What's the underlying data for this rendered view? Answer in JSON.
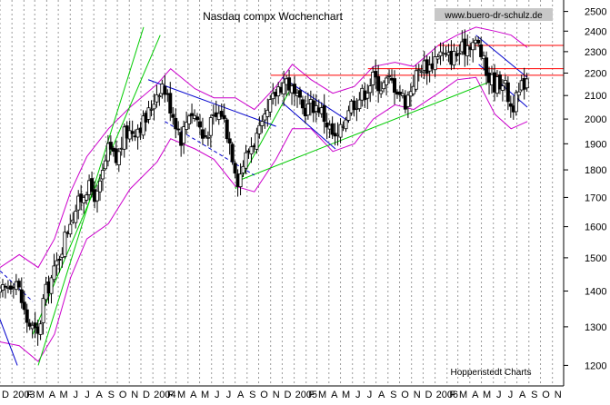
{
  "chart_data": {
    "type": "candlestick",
    "title": "Nasdaq compx Wochenchart",
    "watermark": "www.buero-dr-schulz.de",
    "source": "Hoppenstedt Charts",
    "yscale": "log",
    "ylim": [
      1150,
      2560
    ],
    "y_ticks": [
      1200,
      1300,
      1400,
      1500,
      1600,
      1700,
      1800,
      1900,
      2000,
      2100,
      2200,
      2300,
      2400,
      2500
    ],
    "x_range": [
      "2002-12-01",
      "2006-11-30"
    ],
    "x_ticks": [
      {
        "label": "D",
        "date": "2002-12-01"
      },
      {
        "label": "2003",
        "date": "2003-01-01"
      },
      {
        "label": "F",
        "date": "2003-02-01"
      },
      {
        "label": "M",
        "date": "2003-03-01"
      },
      {
        "label": "A",
        "date": "2003-04-01"
      },
      {
        "label": "M",
        "date": "2003-05-01"
      },
      {
        "label": "J",
        "date": "2003-06-01"
      },
      {
        "label": "J",
        "date": "2003-07-01"
      },
      {
        "label": "A",
        "date": "2003-08-01"
      },
      {
        "label": "S",
        "date": "2003-09-01"
      },
      {
        "label": "O",
        "date": "2003-10-01"
      },
      {
        "label": "N",
        "date": "2003-11-01"
      },
      {
        "label": "D",
        "date": "2003-12-01"
      },
      {
        "label": "2004",
        "date": "2004-01-01"
      },
      {
        "label": "F",
        "date": "2004-02-01"
      },
      {
        "label": "M",
        "date": "2004-03-01"
      },
      {
        "label": "A",
        "date": "2004-04-01"
      },
      {
        "label": "M",
        "date": "2004-05-01"
      },
      {
        "label": "J",
        "date": "2004-06-01"
      },
      {
        "label": "J",
        "date": "2004-07-01"
      },
      {
        "label": "A",
        "date": "2004-08-01"
      },
      {
        "label": "S",
        "date": "2004-09-01"
      },
      {
        "label": "O",
        "date": "2004-10-01"
      },
      {
        "label": "N",
        "date": "2004-11-01"
      },
      {
        "label": "D",
        "date": "2004-12-01"
      },
      {
        "label": "2005",
        "date": "2005-01-01"
      },
      {
        "label": "F",
        "date": "2005-02-01"
      },
      {
        "label": "M",
        "date": "2005-03-01"
      },
      {
        "label": "A",
        "date": "2005-04-01"
      },
      {
        "label": "M",
        "date": "2005-05-01"
      },
      {
        "label": "J",
        "date": "2005-06-01"
      },
      {
        "label": "J",
        "date": "2005-07-01"
      },
      {
        "label": "A",
        "date": "2005-08-01"
      },
      {
        "label": "S",
        "date": "2005-09-01"
      },
      {
        "label": "O",
        "date": "2005-10-01"
      },
      {
        "label": "N",
        "date": "2005-11-01"
      },
      {
        "label": "D",
        "date": "2005-12-01"
      },
      {
        "label": "2006",
        "date": "2006-01-01"
      },
      {
        "label": "F",
        "date": "2006-02-01"
      },
      {
        "label": "M",
        "date": "2006-03-01"
      },
      {
        "label": "A",
        "date": "2006-04-01"
      },
      {
        "label": "M",
        "date": "2006-05-01"
      },
      {
        "label": "J",
        "date": "2006-06-01"
      },
      {
        "label": "J",
        "date": "2006-07-01"
      },
      {
        "label": "A",
        "date": "2006-08-01"
      },
      {
        "label": "S",
        "date": "2006-09-01"
      },
      {
        "label": "O",
        "date": "2006-10-01"
      },
      {
        "label": "N",
        "date": "2006-11-01"
      }
    ],
    "grid": {
      "vertical": "dashed",
      "horizontal": false
    },
    "anchors": [
      {
        "date": "2002-12-01",
        "close": 1390
      },
      {
        "date": "2003-01-10",
        "close": 1440
      },
      {
        "date": "2003-02-07",
        "close": 1320
      },
      {
        "date": "2003-03-10",
        "close": 1272
      },
      {
        "date": "2003-03-24",
        "close": 1380
      },
      {
        "date": "2003-04-21",
        "close": 1460
      },
      {
        "date": "2003-05-12",
        "close": 1540
      },
      {
        "date": "2003-06-02",
        "close": 1630
      },
      {
        "date": "2003-06-23",
        "close": 1680
      },
      {
        "date": "2003-07-14",
        "close": 1740
      },
      {
        "date": "2003-08-11",
        "close": 1700
      },
      {
        "date": "2003-09-08",
        "close": 1880
      },
      {
        "date": "2003-09-29",
        "close": 1830
      },
      {
        "date": "2003-10-20",
        "close": 1940
      },
      {
        "date": "2003-11-17",
        "close": 1960
      },
      {
        "date": "2003-12-15",
        "close": 2000
      },
      {
        "date": "2004-01-12",
        "close": 2120
      },
      {
        "date": "2004-01-26",
        "close": 2150
      },
      {
        "date": "2004-02-16",
        "close": 2050
      },
      {
        "date": "2004-03-15",
        "close": 1920
      },
      {
        "date": "2004-04-05",
        "close": 2040
      },
      {
        "date": "2004-04-26",
        "close": 2000
      },
      {
        "date": "2004-05-10",
        "close": 1920
      },
      {
        "date": "2004-06-07",
        "close": 2000
      },
      {
        "date": "2004-06-28",
        "close": 2030
      },
      {
        "date": "2004-07-19",
        "close": 1900
      },
      {
        "date": "2004-08-09",
        "close": 1760
      },
      {
        "date": "2004-08-23",
        "close": 1830
      },
      {
        "date": "2004-09-13",
        "close": 1900
      },
      {
        "date": "2004-10-11",
        "close": 1960
      },
      {
        "date": "2004-11-01",
        "close": 2060
      },
      {
        "date": "2004-11-22",
        "close": 2140
      },
      {
        "date": "2004-12-13",
        "close": 2170
      },
      {
        "date": "2005-01-03",
        "close": 2090
      },
      {
        "date": "2005-01-24",
        "close": 2040
      },
      {
        "date": "2005-02-14",
        "close": 2060
      },
      {
        "date": "2005-03-07",
        "close": 2050
      },
      {
        "date": "2005-03-28",
        "close": 1980
      },
      {
        "date": "2005-04-18",
        "close": 1910
      },
      {
        "date": "2005-05-02",
        "close": 1950
      },
      {
        "date": "2005-05-23",
        "close": 2060
      },
      {
        "date": "2005-06-13",
        "close": 2080
      },
      {
        "date": "2005-07-04",
        "close": 2120
      },
      {
        "date": "2005-07-25",
        "close": 2180
      },
      {
        "date": "2005-08-15",
        "close": 2140
      },
      {
        "date": "2005-09-05",
        "close": 2170
      },
      {
        "date": "2005-09-26",
        "close": 2130
      },
      {
        "date": "2005-10-17",
        "close": 2070
      },
      {
        "date": "2005-11-07",
        "close": 2170
      },
      {
        "date": "2005-11-28",
        "close": 2240
      },
      {
        "date": "2005-12-19",
        "close": 2230
      },
      {
        "date": "2006-01-09",
        "close": 2300
      },
      {
        "date": "2006-01-30",
        "close": 2270
      },
      {
        "date": "2006-02-20",
        "close": 2280
      },
      {
        "date": "2006-03-13",
        "close": 2310
      },
      {
        "date": "2006-04-03",
        "close": 2350
      },
      {
        "date": "2006-04-24",
        "close": 2330
      },
      {
        "date": "2006-05-15",
        "close": 2190
      },
      {
        "date": "2006-06-05",
        "close": 2150
      },
      {
        "date": "2006-06-26",
        "close": 2170
      },
      {
        "date": "2006-07-17",
        "close": 2050
      },
      {
        "date": "2006-07-31",
        "close": 2080
      },
      {
        "date": "2006-08-14",
        "close": 2140
      },
      {
        "date": "2006-08-28",
        "close": 2190
      }
    ],
    "bands": {
      "upper": [
        {
          "date": "2002-12-01",
          "value": 1470
        },
        {
          "date": "2003-01-20",
          "value": 1510
        },
        {
          "date": "2003-03-10",
          "value": 1470
        },
        {
          "date": "2003-04-21",
          "value": 1560
        },
        {
          "date": "2003-06-02",
          "value": 1720
        },
        {
          "date": "2003-07-14",
          "value": 1850
        },
        {
          "date": "2003-09-08",
          "value": 1960
        },
        {
          "date": "2003-11-03",
          "value": 2050
        },
        {
          "date": "2004-01-12",
          "value": 2150
        },
        {
          "date": "2004-02-16",
          "value": 2220
        },
        {
          "date": "2004-04-19",
          "value": 2130
        },
        {
          "date": "2004-06-07",
          "value": 2090
        },
        {
          "date": "2004-08-02",
          "value": 2090
        },
        {
          "date": "2004-09-20",
          "value": 2040
        },
        {
          "date": "2004-11-15",
          "value": 2140
        },
        {
          "date": "2004-12-27",
          "value": 2240
        },
        {
          "date": "2005-02-14",
          "value": 2170
        },
        {
          "date": "2005-04-11",
          "value": 2110
        },
        {
          "date": "2005-06-06",
          "value": 2140
        },
        {
          "date": "2005-07-25",
          "value": 2230
        },
        {
          "date": "2005-09-19",
          "value": 2250
        },
        {
          "date": "2005-11-07",
          "value": 2230
        },
        {
          "date": "2006-01-09",
          "value": 2330
        },
        {
          "date": "2006-02-27",
          "value": 2380
        },
        {
          "date": "2006-04-17",
          "value": 2420
        },
        {
          "date": "2006-06-05",
          "value": 2400
        },
        {
          "date": "2006-07-17",
          "value": 2380
        },
        {
          "date": "2006-08-28",
          "value": 2320
        }
      ],
      "lower": [
        {
          "date": "2002-12-01",
          "value": 1260
        },
        {
          "date": "2003-01-20",
          "value": 1250
        },
        {
          "date": "2003-03-10",
          "value": 1210
        },
        {
          "date": "2003-04-21",
          "value": 1280
        },
        {
          "date": "2003-06-02",
          "value": 1440
        },
        {
          "date": "2003-07-14",
          "value": 1560
        },
        {
          "date": "2003-09-08",
          "value": 1610
        },
        {
          "date": "2003-11-03",
          "value": 1730
        },
        {
          "date": "2004-01-12",
          "value": 1830
        },
        {
          "date": "2004-02-16",
          "value": 1920
        },
        {
          "date": "2004-04-19",
          "value": 1880
        },
        {
          "date": "2004-06-07",
          "value": 1840
        },
        {
          "date": "2004-08-02",
          "value": 1740
        },
        {
          "date": "2004-09-20",
          "value": 1720
        },
        {
          "date": "2004-11-15",
          "value": 1840
        },
        {
          "date": "2004-12-27",
          "value": 1960
        },
        {
          "date": "2005-02-14",
          "value": 1960
        },
        {
          "date": "2005-04-11",
          "value": 1870
        },
        {
          "date": "2005-06-06",
          "value": 1900
        },
        {
          "date": "2005-07-25",
          "value": 2000
        },
        {
          "date": "2005-09-19",
          "value": 2060
        },
        {
          "date": "2005-11-07",
          "value": 2040
        },
        {
          "date": "2006-01-09",
          "value": 2110
        },
        {
          "date": "2006-02-27",
          "value": 2170
        },
        {
          "date": "2006-04-17",
          "value": 2180
        },
        {
          "date": "2006-06-05",
          "value": 2020
        },
        {
          "date": "2006-07-17",
          "value": 1960
        },
        {
          "date": "2006-08-28",
          "value": 1990
        }
      ]
    },
    "trendlines": [
      {
        "color": "#00cc00",
        "style": "solid",
        "from": {
          "date": "2003-03-10",
          "value": 1200
        },
        "to": {
          "date": "2003-12-08",
          "value": 2420
        }
      },
      {
        "color": "#00cc00",
        "style": "solid",
        "from": {
          "date": "2003-02-24",
          "value": 1280
        },
        "to": {
          "date": "2004-01-20",
          "value": 2380
        }
      },
      {
        "color": "#00cc00",
        "style": "solid",
        "from": {
          "date": "2004-08-02",
          "value": 1730
        },
        "to": {
          "date": "2004-12-20",
          "value": 2120
        }
      },
      {
        "color": "#00cc00",
        "style": "solid",
        "from": {
          "date": "2004-08-09",
          "value": 1760
        },
        "to": {
          "date": "2006-06-20",
          "value": 2180
        }
      },
      {
        "color": "#0000cc",
        "style": "solid",
        "from": {
          "date": "2003-12-20",
          "value": 2170
        },
        "to": {
          "date": "2004-11-15",
          "value": 1970
        }
      },
      {
        "color": "#0000cc",
        "style": "solid",
        "from": {
          "date": "2004-12-01",
          "value": 2180
        },
        "to": {
          "date": "2005-05-23",
          "value": 1990
        }
      },
      {
        "color": "#0000cc",
        "style": "solid",
        "from": {
          "date": "2004-12-01",
          "value": 2070
        },
        "to": {
          "date": "2005-04-18",
          "value": 1880
        }
      },
      {
        "color": "#0000cc",
        "style": "solid",
        "from": {
          "date": "2006-04-17",
          "value": 2380
        },
        "to": {
          "date": "2006-08-28",
          "value": 2180
        }
      },
      {
        "color": "#0000cc",
        "style": "solid",
        "from": {
          "date": "2006-04-24",
          "value": 2240
        },
        "to": {
          "date": "2006-08-28",
          "value": 2050
        }
      },
      {
        "color": "#0000cc",
        "style": "dashed",
        "from": {
          "date": "2002-12-01",
          "value": 1460
        },
        "to": {
          "date": "2003-02-24",
          "value": 1370
        }
      },
      {
        "color": "#0000cc",
        "style": "solid",
        "from": {
          "date": "2002-12-01",
          "value": 1320
        },
        "to": {
          "date": "2003-01-15",
          "value": 1200
        }
      },
      {
        "color": "#0000cc",
        "style": "dashed",
        "from": {
          "date": "2004-02-01",
          "value": 1990
        },
        "to": {
          "date": "2004-09-20",
          "value": 1780
        }
      }
    ],
    "hlines": [
      {
        "color": "#ff0000",
        "value": 2330,
        "from": "2006-01-09",
        "to": "2006-11-30"
      },
      {
        "color": "#ff0000",
        "value": 2220,
        "from": "2005-07-11",
        "to": "2006-11-30"
      },
      {
        "color": "#ff0000",
        "value": 2190,
        "from": "2004-11-01",
        "to": "2006-11-30"
      }
    ]
  }
}
